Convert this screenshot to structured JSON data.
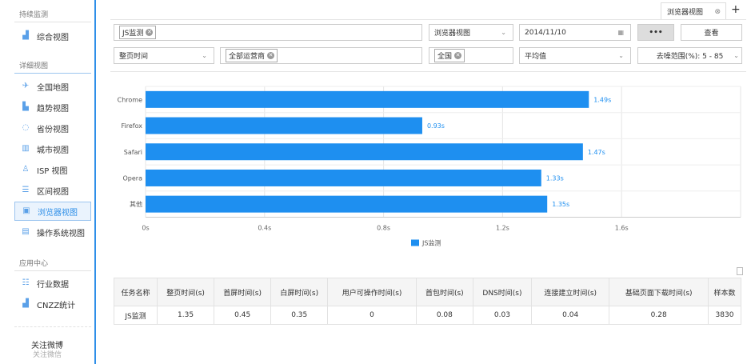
{
  "sidebar": {
    "sections": [
      "持续监测",
      "详细视图",
      "应用中心"
    ],
    "items": [
      {
        "label": "综合视图",
        "icon": "chart-icon"
      },
      {
        "label": "全国地图",
        "icon": "map-icon"
      },
      {
        "label": "趋势视图",
        "icon": "trend-icon"
      },
      {
        "label": "省份视图",
        "icon": "province-icon"
      },
      {
        "label": "城市视图",
        "icon": "city-icon"
      },
      {
        "label": "ISP 视图",
        "icon": "isp-icon"
      },
      {
        "label": "区间视图",
        "icon": "range-icon"
      },
      {
        "label": "浏览器视图",
        "icon": "browser-icon",
        "active": true
      },
      {
        "label": "操作系统视图",
        "icon": "os-icon"
      },
      {
        "label": "行业数据",
        "icon": "database-icon"
      },
      {
        "label": "CNZZ统计",
        "icon": "bar-icon"
      }
    ],
    "follow_weibo": "关注微博",
    "follow_wechat": "关注微信"
  },
  "tabs": {
    "active": "浏览器视图",
    "add": "+"
  },
  "filters": {
    "task_tag": "JS监测",
    "view": "浏览器视图",
    "date": "2014/11/10",
    "more": "•••",
    "view_button": "查看",
    "metric": "整页时间",
    "isp_tag": "全部运营商",
    "region_tag": "全国",
    "stat": "平均值",
    "noise": "去噪范围(%): 5 - 85"
  },
  "chart_data": {
    "type": "bar",
    "orientation": "horizontal",
    "categories": [
      "Chrome",
      "Firefox",
      "Safari",
      "Opera",
      "其他"
    ],
    "series": [
      {
        "name": "JS监测",
        "values": [
          1.49,
          0.93,
          1.47,
          1.33,
          1.35
        ],
        "color": "#1e8ff0"
      }
    ],
    "data_labels": [
      "1.49s",
      "0.93s",
      "1.47s",
      "1.33s",
      "1.35s"
    ],
    "xticks": [
      "0s",
      "0.4s",
      "0.8s",
      "1.2s",
      "1.6s"
    ],
    "xlim": [
      0,
      2
    ],
    "grid": true,
    "legend": "bottom"
  },
  "table": {
    "headers": [
      "任务名称",
      "整页时间(s)",
      "首屏时间(s)",
      "白屏时间(s)",
      "用户可操作时间(s)",
      "首包时间(s)",
      "DNS时间(s)",
      "连接建立时间(s)",
      "基础页面下载时间(s)",
      "样本数"
    ],
    "rows": [
      [
        "JS监测",
        "1.35",
        "0.45",
        "0.35",
        "0",
        "0.08",
        "0.03",
        "0.04",
        "0.28",
        "3830"
      ]
    ]
  }
}
